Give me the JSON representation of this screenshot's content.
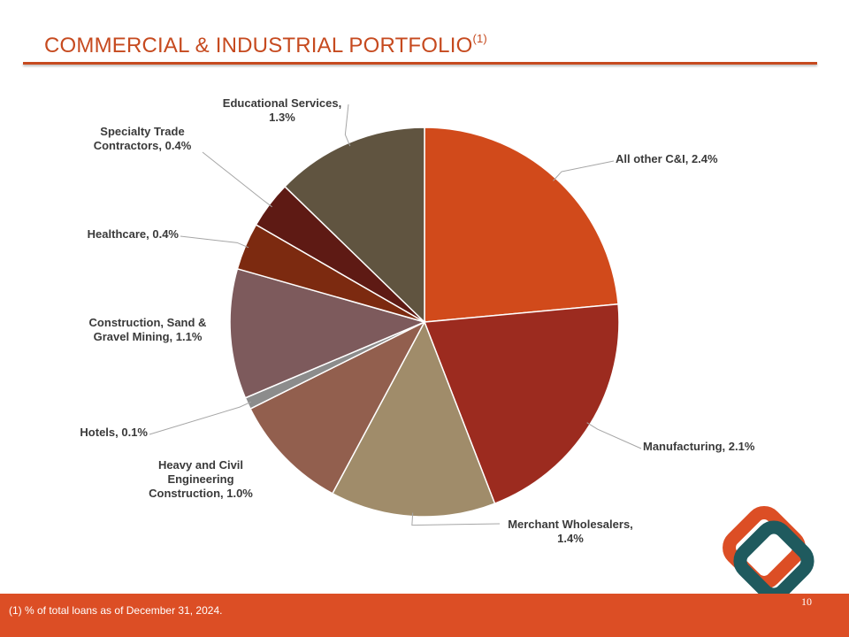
{
  "slide": {
    "title": "COMMERCIAL & INDUSTRIAL PORTFOLIO",
    "title_superscript": "(1)",
    "footnote": "(1)  % of total loans as of December 31, 2024.",
    "page_number": "10"
  },
  "colors": {
    "accent": "#c64a1f",
    "footer": "#dc4e25",
    "logo_orange": "#dc4e25",
    "logo_teal": "#1f5a5e"
  },
  "chart_data": {
    "type": "pie",
    "title": "",
    "unit": "%",
    "slices": [
      {
        "label": "All other C&I, 2.4%",
        "category": "All other C&I",
        "value": 2.4,
        "color": "#d14a1b"
      },
      {
        "label": "Manufacturing, 2.1%",
        "category": "Manufacturing",
        "value": 2.1,
        "color": "#9c2b1f"
      },
      {
        "label": "Merchant Wholesalers, 1.4%",
        "category": "Merchant Wholesalers",
        "value": 1.4,
        "color": "#a08c6a"
      },
      {
        "label": "Heavy and Civil Engineering Construction, 1.0%",
        "category": "Heavy and Civil Engineering Construction",
        "value": 1.0,
        "color": "#925f4e"
      },
      {
        "label": "Hotels, 0.1%",
        "category": "Hotels",
        "value": 0.1,
        "color": "#8c8c8c"
      },
      {
        "label": "Construction, Sand & Gravel Mining, 1.1%",
        "category": "Construction, Sand & Gravel Mining",
        "value": 1.1,
        "color": "#7d5a5c"
      },
      {
        "label": "Healthcare, 0.4%",
        "category": "Healthcare",
        "value": 0.4,
        "color": "#7c2a10"
      },
      {
        "label": "Specialty Trade Contractors, 0.4%",
        "category": "Specialty Trade Contractors",
        "value": 0.4,
        "color": "#5e1a14"
      },
      {
        "label": "Educational Services, 1.3%",
        "category": "Educational Services",
        "value": 1.3,
        "color": "#605440"
      }
    ],
    "legend": "none",
    "data_labels": "outside with leader lines"
  }
}
